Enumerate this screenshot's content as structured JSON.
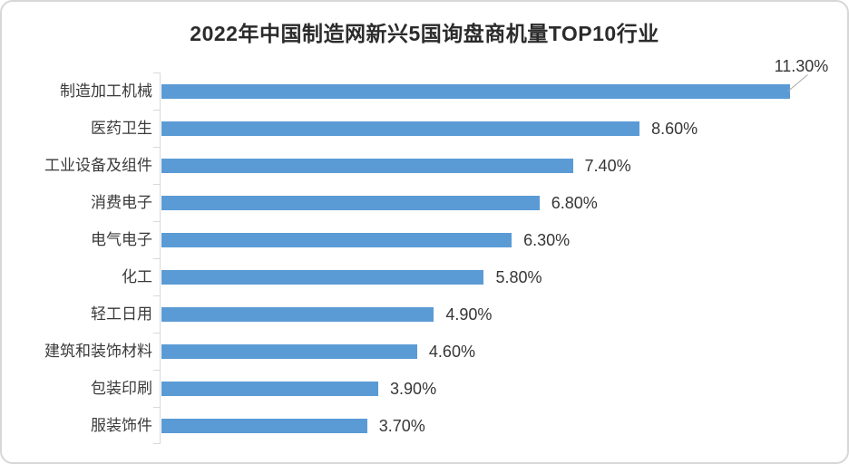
{
  "frame": {
    "background": "#ffffff",
    "border_color": "#d7d7d7"
  },
  "chart_data": {
    "type": "bar",
    "orientation": "horizontal",
    "title": "2022年中国制造网新兴5国询盘商机量TOP10行业",
    "categories": [
      "制造加工机械",
      "医药卫生",
      "工业设备及组件",
      "消费电子",
      "电气电子",
      "化工",
      "轻工日用",
      "建筑和装饰材料",
      "包装印刷",
      "服装饰件"
    ],
    "values": [
      11.3,
      8.6,
      7.4,
      6.8,
      6.3,
      5.8,
      4.9,
      4.6,
      3.9,
      3.7
    ],
    "value_labels": [
      "11.30%",
      "8.60%",
      "7.40%",
      "6.80%",
      "6.30%",
      "5.80%",
      "4.90%",
      "4.60%",
      "3.90%",
      "3.70%"
    ],
    "xlabel": "",
    "ylabel": "",
    "xlim": [
      0,
      12.4
    ],
    "grid": false,
    "legend": "none",
    "bar_color": "#5b9bd5",
    "axis_color": "#d9d9d9",
    "leader_line_color": "#a6a6a6",
    "value_label_position": "end",
    "callout_index": 0
  }
}
